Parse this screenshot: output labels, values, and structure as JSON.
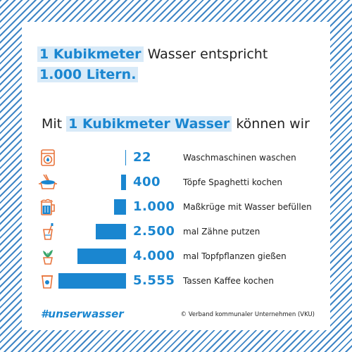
{
  "headline": {
    "highlight1": "1 Kubikmeter",
    "text": "Wasser entspricht",
    "highlight2": "1.000 Litern."
  },
  "subhead": {
    "prefix": "Mit",
    "highlight": "1 Kubikmeter Wasser",
    "suffix": "können wir"
  },
  "chart_data": {
    "type": "bar",
    "orientation": "horizontal",
    "categories": [
      "Waschmaschinen waschen",
      "Töpfe Spaghetti kochen",
      "Maßkrüge mit Wasser befüllen",
      "mal Zähne putzen",
      "mal Topfpflanzen gießen",
      "Tassen Kaffee kochen"
    ],
    "values": [
      22,
      400,
      1000,
      2500,
      4000,
      5555
    ],
    "value_labels": [
      "22",
      "400",
      "1.000",
      "2.500",
      "4.000",
      "5.555"
    ],
    "icons": [
      "washing-machine-icon",
      "pot-icon",
      "beer-mug-icon",
      "toothbrush-cup-icon",
      "potted-plant-icon",
      "coffee-cup-icon"
    ],
    "colors": {
      "bar": "#1a86d0",
      "accent": "#1a86d0",
      "icon": "#e8743b"
    }
  },
  "footer": {
    "hashtag": "#unserwasser",
    "credit": "© Verband kommunaler Unternehmen (VKU)"
  }
}
